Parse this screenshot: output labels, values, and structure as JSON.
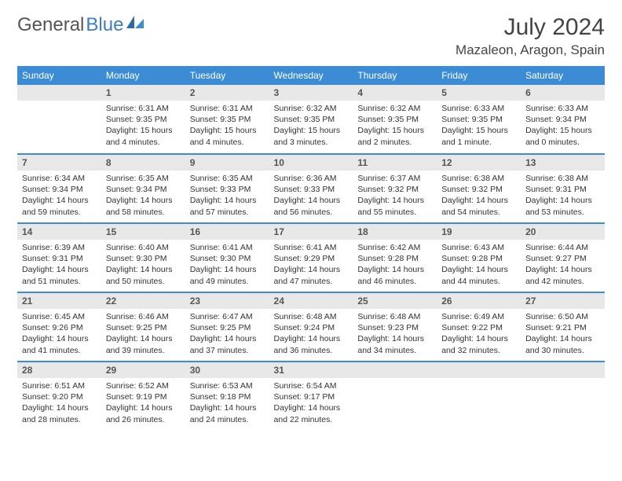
{
  "logo": {
    "text1": "General",
    "text2": "Blue"
  },
  "title": "July 2024",
  "location": "Mazaleon, Aragon, Spain",
  "colors": {
    "header_bg": "#3b8cd4",
    "header_text": "#ffffff",
    "daynum_bg": "#e8e8e8",
    "row_border": "#3b8cd4",
    "logo_blue": "#3b7fc4"
  },
  "weekdays": [
    "Sunday",
    "Monday",
    "Tuesday",
    "Wednesday",
    "Thursday",
    "Friday",
    "Saturday"
  ],
  "weeks": [
    [
      null,
      {
        "d": "1",
        "sr": "6:31 AM",
        "ss": "9:35 PM",
        "dl": "15 hours and 4 minutes."
      },
      {
        "d": "2",
        "sr": "6:31 AM",
        "ss": "9:35 PM",
        "dl": "15 hours and 4 minutes."
      },
      {
        "d": "3",
        "sr": "6:32 AM",
        "ss": "9:35 PM",
        "dl": "15 hours and 3 minutes."
      },
      {
        "d": "4",
        "sr": "6:32 AM",
        "ss": "9:35 PM",
        "dl": "15 hours and 2 minutes."
      },
      {
        "d": "5",
        "sr": "6:33 AM",
        "ss": "9:35 PM",
        "dl": "15 hours and 1 minute."
      },
      {
        "d": "6",
        "sr": "6:33 AM",
        "ss": "9:34 PM",
        "dl": "15 hours and 0 minutes."
      }
    ],
    [
      {
        "d": "7",
        "sr": "6:34 AM",
        "ss": "9:34 PM",
        "dl": "14 hours and 59 minutes."
      },
      {
        "d": "8",
        "sr": "6:35 AM",
        "ss": "9:34 PM",
        "dl": "14 hours and 58 minutes."
      },
      {
        "d": "9",
        "sr": "6:35 AM",
        "ss": "9:33 PM",
        "dl": "14 hours and 57 minutes."
      },
      {
        "d": "10",
        "sr": "6:36 AM",
        "ss": "9:33 PM",
        "dl": "14 hours and 56 minutes."
      },
      {
        "d": "11",
        "sr": "6:37 AM",
        "ss": "9:32 PM",
        "dl": "14 hours and 55 minutes."
      },
      {
        "d": "12",
        "sr": "6:38 AM",
        "ss": "9:32 PM",
        "dl": "14 hours and 54 minutes."
      },
      {
        "d": "13",
        "sr": "6:38 AM",
        "ss": "9:31 PM",
        "dl": "14 hours and 53 minutes."
      }
    ],
    [
      {
        "d": "14",
        "sr": "6:39 AM",
        "ss": "9:31 PM",
        "dl": "14 hours and 51 minutes."
      },
      {
        "d": "15",
        "sr": "6:40 AM",
        "ss": "9:30 PM",
        "dl": "14 hours and 50 minutes."
      },
      {
        "d": "16",
        "sr": "6:41 AM",
        "ss": "9:30 PM",
        "dl": "14 hours and 49 minutes."
      },
      {
        "d": "17",
        "sr": "6:41 AM",
        "ss": "9:29 PM",
        "dl": "14 hours and 47 minutes."
      },
      {
        "d": "18",
        "sr": "6:42 AM",
        "ss": "9:28 PM",
        "dl": "14 hours and 46 minutes."
      },
      {
        "d": "19",
        "sr": "6:43 AM",
        "ss": "9:28 PM",
        "dl": "14 hours and 44 minutes."
      },
      {
        "d": "20",
        "sr": "6:44 AM",
        "ss": "9:27 PM",
        "dl": "14 hours and 42 minutes."
      }
    ],
    [
      {
        "d": "21",
        "sr": "6:45 AM",
        "ss": "9:26 PM",
        "dl": "14 hours and 41 minutes."
      },
      {
        "d": "22",
        "sr": "6:46 AM",
        "ss": "9:25 PM",
        "dl": "14 hours and 39 minutes."
      },
      {
        "d": "23",
        "sr": "6:47 AM",
        "ss": "9:25 PM",
        "dl": "14 hours and 37 minutes."
      },
      {
        "d": "24",
        "sr": "6:48 AM",
        "ss": "9:24 PM",
        "dl": "14 hours and 36 minutes."
      },
      {
        "d": "25",
        "sr": "6:48 AM",
        "ss": "9:23 PM",
        "dl": "14 hours and 34 minutes."
      },
      {
        "d": "26",
        "sr": "6:49 AM",
        "ss": "9:22 PM",
        "dl": "14 hours and 32 minutes."
      },
      {
        "d": "27",
        "sr": "6:50 AM",
        "ss": "9:21 PM",
        "dl": "14 hours and 30 minutes."
      }
    ],
    [
      {
        "d": "28",
        "sr": "6:51 AM",
        "ss": "9:20 PM",
        "dl": "14 hours and 28 minutes."
      },
      {
        "d": "29",
        "sr": "6:52 AM",
        "ss": "9:19 PM",
        "dl": "14 hours and 26 minutes."
      },
      {
        "d": "30",
        "sr": "6:53 AM",
        "ss": "9:18 PM",
        "dl": "14 hours and 24 minutes."
      },
      {
        "d": "31",
        "sr": "6:54 AM",
        "ss": "9:17 PM",
        "dl": "14 hours and 22 minutes."
      },
      null,
      null,
      null
    ]
  ],
  "labels": {
    "sunrise": "Sunrise: ",
    "sunset": "Sunset: ",
    "daylight": "Daylight: "
  }
}
